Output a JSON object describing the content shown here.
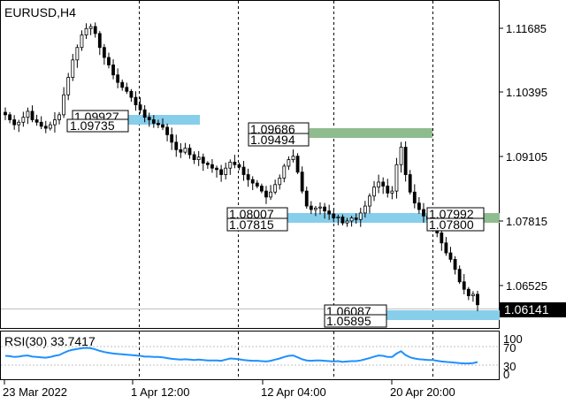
{
  "chart": {
    "title": "EURUSD,H4",
    "current_price": "1.06141",
    "price_ticks": [
      "1.11685",
      "1.10395",
      "1.09105",
      "1.07815",
      "1.06525"
    ],
    "time_ticks": [
      "23 Mar 2022",
      "1 Apr 12:00",
      "12 Apr 04:00",
      "20 Apr 20:00"
    ]
  },
  "zones": [
    {
      "id": "zone1",
      "upper": "1.09927",
      "lower": "1.09735",
      "color": "#87ceeb"
    },
    {
      "id": "zone2",
      "upper": "1.09686",
      "lower": "1.09494",
      "color": "#8fbc8f"
    },
    {
      "id": "zone3",
      "upper": "1.08007",
      "lower": "1.07815",
      "color": "#87ceeb"
    },
    {
      "id": "zone4",
      "upper": "1.07992",
      "lower": "1.07800",
      "color": "#8fbc8f"
    },
    {
      "id": "zone5",
      "upper": "1.06087",
      "lower": "1.05895",
      "color": "#87ceeb"
    }
  ],
  "rsi": {
    "label": "RSI(30) 33.7417",
    "levels": [
      "100",
      "70",
      "30",
      "0"
    ],
    "color": "#1e90ff"
  },
  "chart_data": {
    "type": "line",
    "title": "EURUSD,H4",
    "xlabel": "",
    "ylabel": "",
    "x_ticks": [
      "23 Mar 2022",
      "1 Apr 12:00",
      "12 Apr 04:00",
      "20 Apr 20:00"
    ],
    "ylim": [
      1.05895,
      1.1195
    ],
    "grid": "vertical dashed",
    "series": [
      {
        "values": [
          1.0995,
          1.0985,
          1.0975,
          1.098,
          1.099,
          1.1002,
          1.0985,
          1.098,
          1.0972,
          1.0968,
          1.0975,
          1.0985,
          1.0995,
          1.1035,
          1.107,
          1.1105,
          1.113,
          1.1155,
          1.1168,
          1.1172,
          1.1158,
          1.113,
          1.111,
          1.1095,
          1.1075,
          1.106,
          1.105,
          1.1042,
          1.103,
          1.1015,
          1.1005,
          1.099,
          1.0985,
          1.0978,
          1.0975,
          1.097,
          1.0955,
          1.094,
          1.0925,
          1.092,
          1.0928,
          1.0915,
          1.0905,
          1.091,
          1.0898,
          1.0895,
          1.0888,
          1.0885,
          1.0875,
          1.0888,
          1.09,
          1.0895,
          1.089,
          1.0875,
          1.0865,
          1.0858,
          1.0852,
          1.0842,
          1.083,
          1.084,
          1.0855,
          1.0868,
          1.0892,
          1.0905,
          1.0912,
          1.088,
          1.0842,
          1.0812,
          1.0805,
          1.0808,
          1.081,
          1.0802,
          1.0796,
          1.0788,
          1.079,
          1.0778,
          1.0782,
          1.0788,
          1.0785,
          1.0798,
          1.0812,
          1.0832,
          1.085,
          1.086,
          1.0852,
          1.0838,
          1.0842,
          1.0895,
          1.093,
          1.0875,
          1.084,
          1.0818,
          1.0805,
          1.0792,
          1.0785,
          1.0782,
          1.0758,
          1.0738,
          1.0718,
          1.0705,
          1.0685,
          1.066,
          1.0645,
          1.0632,
          1.0635,
          1.0614
        ]
      }
    ],
    "rsi_values": [
      50,
      49,
      47,
      48,
      50,
      51,
      48,
      47,
      46,
      45,
      47,
      50,
      52,
      58,
      63,
      66,
      68,
      70,
      71,
      70,
      67,
      63,
      60,
      58,
      56,
      55,
      54,
      53,
      52,
      51,
      50,
      48,
      48,
      47,
      47,
      46,
      44,
      42,
      41,
      40,
      41,
      40,
      39,
      40,
      39,
      38,
      38,
      38,
      37,
      40,
      43,
      42,
      41,
      39,
      38,
      37,
      37,
      36,
      35,
      37,
      40,
      43,
      47,
      50,
      51,
      46,
      41,
      38,
      37,
      38,
      38,
      37,
      36,
      35,
      36,
      34,
      35,
      36,
      36,
      38,
      41,
      44,
      48,
      51,
      50,
      47,
      47,
      56,
      62,
      52,
      46,
      43,
      41,
      40,
      39,
      39,
      37,
      35,
      34,
      33,
      32,
      31,
      30,
      30,
      31,
      33.7
    ]
  }
}
